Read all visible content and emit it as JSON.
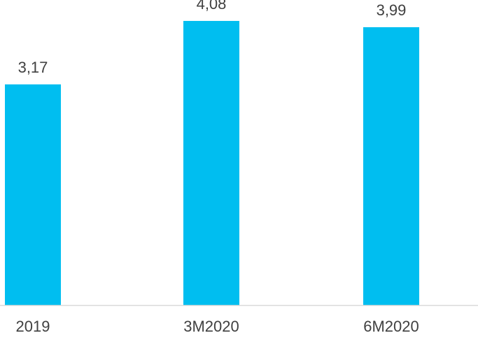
{
  "chart_data": {
    "type": "bar",
    "categories": [
      "2019",
      "3M2020",
      "6M2020"
    ],
    "values": [
      3.17,
      4.08,
      3.99
    ],
    "value_labels": [
      "3,17",
      "4,08",
      "3,99"
    ],
    "title": "",
    "xlabel": "",
    "ylabel": "",
    "ylim": [
      0,
      4.38
    ],
    "grid": false,
    "legend": "none",
    "colors": {
      "bar": "#00BEF0",
      "axis": "#D9D9D9",
      "text": "#404040"
    }
  }
}
